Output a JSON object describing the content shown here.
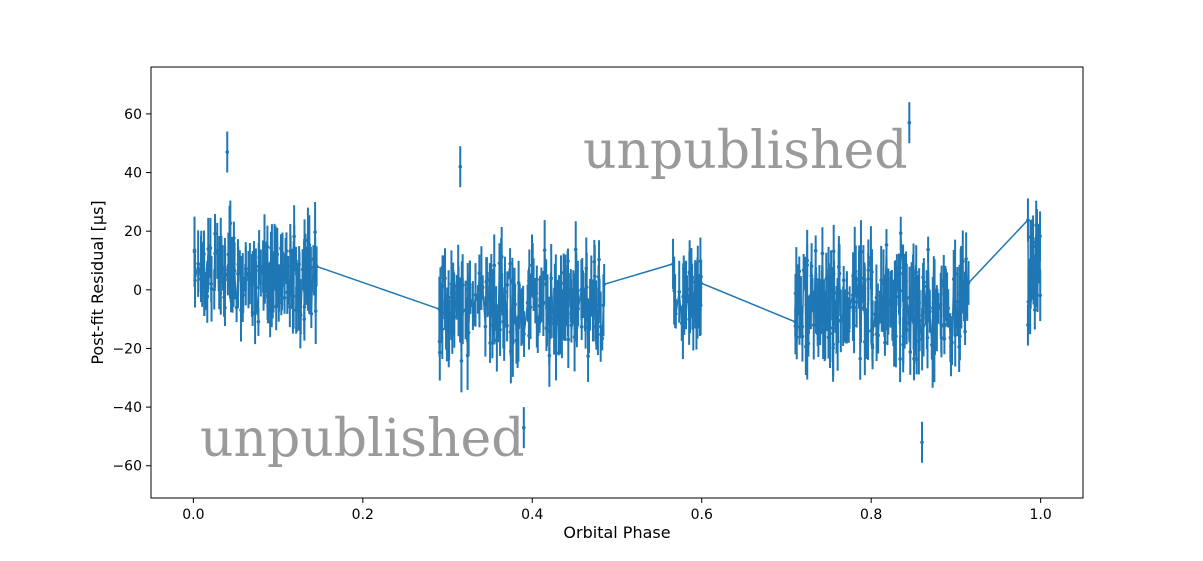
{
  "chart_data": {
    "type": "scatter",
    "title": "",
    "xlabel": "Orbital Phase",
    "ylabel": "Post-fit Residual [μs]",
    "xlim": [
      -0.05,
      1.05
    ],
    "ylim": [
      -71,
      76
    ],
    "x_ticks": [
      0.0,
      0.2,
      0.4,
      0.6,
      0.8,
      1.0
    ],
    "x_tick_labels": [
      "0.0",
      "0.2",
      "0.4",
      "0.6",
      "0.8",
      "1.0"
    ],
    "y_ticks": [
      -60,
      -40,
      -20,
      0,
      20,
      40,
      60
    ],
    "y_tick_labels": [
      "−60",
      "−40",
      "−20",
      "0",
      "20",
      "40",
      "60"
    ],
    "grid": false,
    "legend": "none",
    "error_bars": true,
    "series_color": "#1f77b4",
    "clusters": [
      {
        "x_range": [
          0.0,
          0.148
        ],
        "center": 5,
        "spread": 12,
        "approx_points": 170
      },
      {
        "x_range": [
          0.29,
          0.485
        ],
        "center": -5,
        "spread": 13,
        "approx_points": 230
      },
      {
        "x_range": [
          0.565,
          0.6
        ],
        "center": -3,
        "spread": 10,
        "approx_points": 45
      },
      {
        "x_range": [
          0.71,
          0.915
        ],
        "center": -5,
        "spread": 14,
        "approx_points": 260
      },
      {
        "x_range": [
          0.985,
          1.0
        ],
        "center": 10,
        "spread": 14,
        "approx_points": 30
      }
    ],
    "highlighted_points": [
      {
        "x": 0.04,
        "y": 47
      },
      {
        "x": 0.315,
        "y": 42
      },
      {
        "x": 0.845,
        "y": 57
      },
      {
        "x": 0.86,
        "y": -52
      },
      {
        "x": 0.39,
        "y": -47
      },
      {
        "x": 0.985,
        "y": -12
      }
    ],
    "watermarks": [
      "unpublished",
      "unpublished"
    ]
  }
}
